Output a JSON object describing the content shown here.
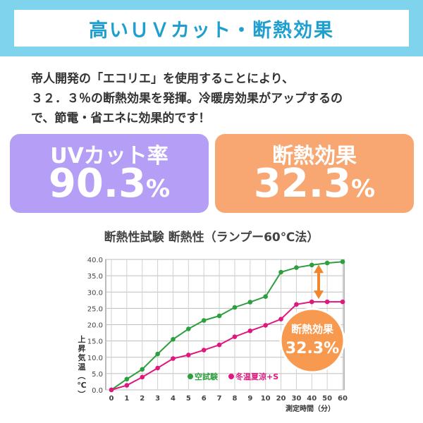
{
  "header": {
    "title": "高いＵＶカット・断熱効果"
  },
  "description": {
    "lines": [
      "帝人開発の「エコリエ」を使用することにより、",
      "３２．３％の断熱効果を発揮。冷暖房効果がアップするの",
      "で、節電・省エネに効果的です！"
    ]
  },
  "cards": {
    "uv": {
      "label": "UVカット率",
      "value": "90.3",
      "unit": "%"
    },
    "heat": {
      "label": "断熱効果",
      "value": "32.3",
      "unit": "%"
    }
  },
  "chart_title": "断熱性試験 断熱性（ランプー60℃法）",
  "colors": {
    "green": "#2e9f3e",
    "pink": "#e0187e",
    "arrow": "#f0872f",
    "badge": "#f79a4f"
  },
  "chart_data": {
    "type": "line",
    "categories": [
      "0",
      "1",
      "2",
      "3",
      "4",
      "5",
      "6",
      "7",
      "8",
      "9",
      "10",
      "20",
      "30",
      "40",
      "50",
      "60"
    ],
    "ylabel": "上昇気温（℃）",
    "xlabel": "測定時間（分）",
    "ylim": [
      0,
      40
    ],
    "yticks": [
      "0.0",
      "5.0",
      "10.0",
      "15.0",
      "20.0",
      "25.0",
      "30.0",
      "35.0",
      "40.0"
    ],
    "grid": true,
    "series": [
      {
        "name": "空試験",
        "color": "#2e9f3e",
        "values": [
          0,
          3.3,
          6.3,
          11,
          15.5,
          18.7,
          21.3,
          22.7,
          25.3,
          26.9,
          28.6,
          36.1,
          37.5,
          38.3,
          38.9,
          39.3
        ]
      },
      {
        "name": "冬温夏涼+S",
        "color": "#e0187e",
        "values": [
          0,
          1.4,
          3.9,
          6.7,
          9.6,
          10.7,
          12.2,
          13.8,
          16.3,
          18.1,
          19.8,
          21.7,
          26.2,
          27.0,
          27.0,
          27.0
        ]
      }
    ],
    "annotation": {
      "label": "断熱効果",
      "value": "32.3%"
    }
  }
}
